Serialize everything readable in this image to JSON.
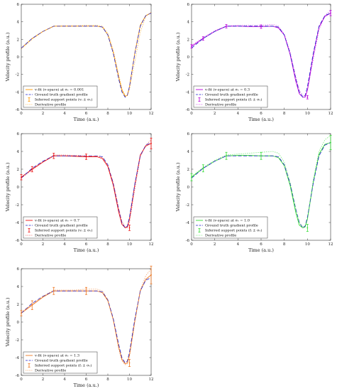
{
  "chart_data": [
    {
      "type": "line",
      "xlabel": "Time (a.u.)",
      "ylabel": "Velocity profile (a.u.)",
      "xlim": [
        0,
        12
      ],
      "ylim": [
        -6,
        6
      ],
      "xticks": [
        "0",
        "2",
        "4",
        "6",
        "8",
        "10",
        "12"
      ],
      "yticks": [
        "-6",
        "-4",
        "-2",
        "0",
        "2",
        "4",
        "6"
      ],
      "legend": [
        "v-fit (v-space) at σᵣ = 0.001",
        "Ground truth gradient profile",
        "Inferred support points (vᵢ ± σᵥ)",
        "Derivative profile"
      ],
      "color": "#ff9900",
      "series": [
        {
          "name": "v-fit (v-space) at σᵣ = 0.001",
          "x": [
            0,
            1,
            2,
            3,
            4,
            5,
            6,
            7,
            7.5,
            8,
            8.5,
            9,
            9.3,
            9.6,
            9.8,
            10,
            10.5,
            11,
            11.5,
            12
          ],
          "y": [
            1.0,
            2.1,
            2.9,
            3.5,
            3.5,
            3.5,
            3.5,
            3.5,
            3.4,
            2.5,
            0.5,
            -2.3,
            -3.8,
            -4.5,
            -4.4,
            -3.4,
            0.5,
            3.6,
            4.7,
            5.0
          ]
        },
        {
          "name": "Ground truth gradient profile",
          "x": [
            0,
            1,
            2,
            3,
            4,
            5,
            6,
            7,
            7.5,
            8,
            8.5,
            9,
            9.3,
            9.6,
            9.8,
            10,
            10.5,
            11,
            11.5,
            12
          ],
          "y": [
            1.0,
            2.1,
            2.9,
            3.5,
            3.5,
            3.5,
            3.5,
            3.5,
            3.4,
            2.5,
            0.4,
            -2.5,
            -4.0,
            -4.6,
            -4.4,
            -3.4,
            0.4,
            3.5,
            4.7,
            5.0
          ]
        },
        {
          "name": "Derivative profile",
          "x": [
            0,
            1,
            2,
            3,
            4,
            5,
            6,
            7,
            7.5,
            8,
            8.5,
            9,
            9.3,
            9.6,
            9.8,
            10,
            10.5,
            11,
            11.5,
            12
          ],
          "y": [
            0.9,
            2.0,
            2.9,
            3.5,
            3.55,
            3.55,
            3.6,
            3.6,
            3.5,
            2.7,
            0.8,
            -2.0,
            -3.6,
            -4.4,
            -4.4,
            -3.7,
            -0.5,
            2.8,
            4.6,
            5.1
          ]
        }
      ],
      "support_points": []
    },
    {
      "type": "line",
      "xlabel": "Time (a.u.)",
      "ylabel": "Velocity profile (a.u.)",
      "xlim": [
        0,
        12
      ],
      "ylim": [
        -6,
        6
      ],
      "xticks": [
        "0",
        "2",
        "4",
        "6",
        "8",
        "10",
        "12"
      ],
      "yticks": [
        "-6",
        "-4",
        "-2",
        "0",
        "2",
        "4",
        "6"
      ],
      "legend": [
        "v-fit (v-space) at σᵣ = 0.3",
        "Ground truth gradient profile",
        "Inferred support points (fᵢ ± σᵥ)",
        "Derivative profile"
      ],
      "color": "#bb00dd",
      "series": [
        {
          "name": "v-fit (v-space) at σᵣ = 0.3",
          "x": [
            0,
            1,
            2,
            3,
            4,
            5,
            6,
            7,
            7.5,
            8,
            8.5,
            9,
            9.3,
            9.6,
            9.8,
            10,
            10.5,
            11,
            11.5,
            12
          ],
          "y": [
            1.2,
            2.1,
            2.9,
            3.5,
            3.5,
            3.45,
            3.45,
            3.5,
            3.3,
            2.5,
            0.3,
            -2.8,
            -4.2,
            -4.6,
            -4.6,
            -3.8,
            0.2,
            3.4,
            4.6,
            5.0
          ]
        },
        {
          "name": "Ground truth gradient profile",
          "x": [
            0,
            1,
            2,
            3,
            4,
            5,
            6,
            7,
            7.5,
            8,
            8.5,
            9,
            9.3,
            9.6,
            9.8,
            10,
            10.5,
            11,
            11.5,
            12
          ],
          "y": [
            1.0,
            2.1,
            2.9,
            3.5,
            3.5,
            3.5,
            3.5,
            3.5,
            3.4,
            2.5,
            0.4,
            -2.5,
            -4.0,
            -4.6,
            -4.4,
            -3.4,
            0.4,
            3.5,
            4.7,
            5.0
          ]
        },
        {
          "name": "Derivative profile",
          "x": [
            0,
            1,
            2,
            3,
            4,
            5,
            6,
            7,
            7.5,
            8,
            8.5,
            9,
            9.3,
            9.6,
            9.8,
            10,
            10.5,
            11,
            11.5,
            12
          ],
          "y": [
            1.3,
            2.2,
            3.0,
            3.5,
            3.6,
            3.6,
            3.6,
            3.7,
            3.5,
            2.6,
            0.6,
            -2.3,
            -3.8,
            -4.4,
            -4.4,
            -3.8,
            -0.3,
            3.1,
            4.7,
            5.3
          ]
        }
      ],
      "support_points": [
        {
          "x": 0,
          "y": 1.2,
          "err": 0.2
        },
        {
          "x": 1,
          "y": 2.1,
          "err": 0.2
        },
        {
          "x": 3,
          "y": 3.5,
          "err": 0.2
        },
        {
          "x": 6,
          "y": 3.45,
          "err": 0.2
        },
        {
          "x": 10,
          "y": -4.6,
          "err": 0.2
        },
        {
          "x": 12,
          "y": 5.0,
          "err": 0.3
        }
      ]
    },
    {
      "type": "line",
      "xlabel": "Time (a.u.)",
      "ylabel": "Velocity profile (a.u.)",
      "xlim": [
        0,
        12
      ],
      "ylim": [
        -6,
        6
      ],
      "xticks": [
        "0",
        "2",
        "4",
        "6",
        "8",
        "10",
        "12"
      ],
      "yticks": [
        "-6",
        "-4",
        "-2",
        "0",
        "2",
        "4",
        "6"
      ],
      "legend": [
        "v-fit (v-space) at σᵣ = 0.7",
        "Ground truth gradient profile",
        "Inferred support points (vᵢ ± σᵥ)",
        "Derivative profile"
      ],
      "color": "#ee1111",
      "series": [
        {
          "name": "v-fit (v-space) at σᵣ = 0.7",
          "x": [
            0,
            1,
            2,
            3,
            4,
            5,
            6,
            7,
            7.5,
            8,
            8.5,
            9,
            9.3,
            9.6,
            9.8,
            10,
            10.5,
            11,
            11.5,
            12
          ],
          "y": [
            1.1,
            2.0,
            2.8,
            3.5,
            3.5,
            3.45,
            3.4,
            3.4,
            3.2,
            2.3,
            0.2,
            -2.8,
            -4.2,
            -4.6,
            -4.5,
            -3.6,
            0.3,
            3.6,
            4.6,
            4.9
          ]
        },
        {
          "name": "Ground truth gradient profile",
          "x": [
            0,
            1,
            2,
            3,
            4,
            5,
            6,
            7,
            7.5,
            8,
            8.5,
            9,
            9.3,
            9.6,
            9.8,
            10,
            10.5,
            11,
            11.5,
            12
          ],
          "y": [
            1.0,
            2.1,
            2.9,
            3.5,
            3.5,
            3.5,
            3.5,
            3.5,
            3.4,
            2.5,
            0.4,
            -2.5,
            -4.0,
            -4.6,
            -4.4,
            -3.4,
            0.4,
            3.5,
            4.7,
            5.0
          ]
        },
        {
          "name": "Derivative profile",
          "x": [
            0,
            1,
            2,
            3,
            4,
            5,
            6,
            7,
            7.5,
            8,
            8.5,
            9,
            9.3,
            9.6,
            9.8,
            10,
            10.5,
            11,
            11.5,
            12
          ],
          "y": [
            1.0,
            1.9,
            2.8,
            3.6,
            3.6,
            3.55,
            3.5,
            3.5,
            3.3,
            2.4,
            0.5,
            -2.4,
            -3.9,
            -4.5,
            -4.6,
            -4.0,
            -0.2,
            3.4,
            4.7,
            5.3
          ]
        }
      ],
      "support_points": [
        {
          "x": 0,
          "y": 1.1,
          "err": 0.3
        },
        {
          "x": 1,
          "y": 2.0,
          "err": 0.3
        },
        {
          "x": 3,
          "y": 3.5,
          "err": 0.3
        },
        {
          "x": 6,
          "y": 3.4,
          "err": 0.3
        },
        {
          "x": 10,
          "y": -4.6,
          "err": 0.3
        },
        {
          "x": 12,
          "y": 4.9,
          "err": 0.6
        }
      ]
    },
    {
      "type": "line",
      "xlabel": "Time (a.u.)",
      "ylabel": "Velocity profile (a.u.)",
      "xlim": [
        0,
        12
      ],
      "ylim": [
        -6,
        6
      ],
      "xticks": [
        "0",
        "2",
        "4",
        "6",
        "8",
        "10",
        "12"
      ],
      "yticks": [
        "-6",
        "-4",
        "-2",
        "0",
        "2",
        "4",
        "6"
      ],
      "legend": [
        "v-fit (v-space) at σᵣ = 1.0",
        "Ground truth gradient profile",
        "Inferred support points (fᵢ ± σᵥ)",
        "Derivative profile"
      ],
      "color": "#33dd33",
      "series": [
        {
          "name": "v-fit (v-space) at σᵣ = 1.0",
          "x": [
            0,
            1,
            2,
            3,
            4,
            5,
            6,
            7,
            7.5,
            8,
            8.5,
            9,
            9.3,
            9.6,
            9.8,
            10,
            10.5,
            11,
            11.5,
            12
          ],
          "y": [
            1.1,
            2.1,
            2.9,
            3.5,
            3.55,
            3.55,
            3.5,
            3.5,
            3.3,
            2.4,
            0.2,
            -2.9,
            -4.3,
            -4.6,
            -4.5,
            -3.6,
            0.5,
            3.7,
            4.8,
            5.0
          ]
        },
        {
          "name": "Ground truth gradient profile",
          "x": [
            0,
            1,
            2,
            3,
            4,
            5,
            6,
            7,
            7.5,
            8,
            8.5,
            9,
            9.3,
            9.6,
            9.8,
            10,
            10.5,
            11,
            11.5,
            12
          ],
          "y": [
            1.0,
            2.1,
            2.9,
            3.5,
            3.5,
            3.5,
            3.5,
            3.5,
            3.4,
            2.5,
            0.4,
            -2.5,
            -4.0,
            -4.6,
            -4.4,
            -3.4,
            0.4,
            3.5,
            4.7,
            5.0
          ]
        },
        {
          "name": "Derivative profile",
          "x": [
            0,
            1,
            2,
            3,
            4,
            5,
            6,
            7,
            7.5,
            8,
            8.5,
            9,
            9.3,
            9.6,
            9.8,
            10,
            10.5,
            11,
            11.5,
            12
          ],
          "y": [
            1.2,
            2.2,
            3.0,
            3.6,
            3.7,
            3.8,
            3.9,
            4.0,
            3.8,
            2.8,
            0.6,
            -2.5,
            -4.0,
            -4.5,
            -4.4,
            -3.6,
            0.8,
            4.0,
            5.3,
            5.8
          ]
        }
      ],
      "support_points": [
        {
          "x": 0,
          "y": 1.1,
          "err": 0.4
        },
        {
          "x": 1,
          "y": 2.1,
          "err": 0.4
        },
        {
          "x": 3,
          "y": 3.5,
          "err": 0.4
        },
        {
          "x": 6,
          "y": 3.5,
          "err": 0.4
        },
        {
          "x": 10,
          "y": -4.6,
          "err": 0.4
        },
        {
          "x": 12,
          "y": 5.0,
          "err": 0.8
        }
      ]
    },
    {
      "type": "line",
      "xlabel": "Time (a.u.)",
      "ylabel": "Velocity profile (a.u.)",
      "xlim": [
        0,
        12
      ],
      "ylim": [
        -6,
        6
      ],
      "xticks": [
        "0",
        "2",
        "4",
        "6",
        "8",
        "10",
        "12"
      ],
      "yticks": [
        "-6",
        "-4",
        "-2",
        "0",
        "2",
        "4",
        "6"
      ],
      "legend": [
        "v-fit (v-space) at σᵣ = 1.3",
        "Ground truth gradient profile",
        "Inferred support points (fᵢ ± σᵥ)",
        "Derivative profile"
      ],
      "color": "#ee7722",
      "series": [
        {
          "name": "v-fit (v-space) at σᵣ = 1.3",
          "x": [
            0,
            1,
            2,
            3,
            4,
            5,
            6,
            7,
            7.5,
            8,
            8.5,
            9,
            9.3,
            9.6,
            9.8,
            10,
            10.5,
            11,
            11.5,
            12
          ],
          "y": [
            1.0,
            1.9,
            2.8,
            3.5,
            3.5,
            3.5,
            3.5,
            3.5,
            3.3,
            2.4,
            0.3,
            -2.8,
            -4.2,
            -4.7,
            -4.6,
            -3.7,
            0.2,
            3.5,
            4.8,
            5.3
          ]
        },
        {
          "name": "Ground truth gradient profile",
          "x": [
            0,
            1,
            2,
            3,
            4,
            5,
            6,
            7,
            7.5,
            8,
            8.5,
            9,
            9.3,
            9.6,
            9.8,
            10,
            10.5,
            11,
            11.5,
            12
          ],
          "y": [
            1.0,
            2.1,
            2.9,
            3.5,
            3.5,
            3.5,
            3.5,
            3.5,
            3.4,
            2.5,
            0.4,
            -2.5,
            -4.0,
            -4.6,
            -4.4,
            -3.4,
            0.4,
            3.5,
            4.7,
            5.0
          ]
        },
        {
          "name": "Derivative profile",
          "x": [
            0,
            1,
            2,
            3,
            4,
            5,
            6,
            7,
            7.5,
            8,
            8.5,
            9,
            9.3,
            9.6,
            9.8,
            10,
            10.5,
            11,
            11.5,
            12
          ],
          "y": [
            1.1,
            2.0,
            2.9,
            3.6,
            3.6,
            3.6,
            3.7,
            3.7,
            3.5,
            2.5,
            0.2,
            -3.0,
            -4.4,
            -4.8,
            -4.7,
            -3.9,
            0.0,
            3.6,
            5.2,
            6.0
          ]
        }
      ],
      "support_points": [
        {
          "x": 0,
          "y": 1.0,
          "err": 0.3
        },
        {
          "x": 1,
          "y": 1.9,
          "err": 0.5
        },
        {
          "x": 3,
          "y": 3.5,
          "err": 0.4
        },
        {
          "x": 6,
          "y": 3.5,
          "err": 0.4
        },
        {
          "x": 10,
          "y": -4.6,
          "err": 0.4
        },
        {
          "x": 12,
          "y": 5.3,
          "err": 1.0
        }
      ]
    }
  ]
}
